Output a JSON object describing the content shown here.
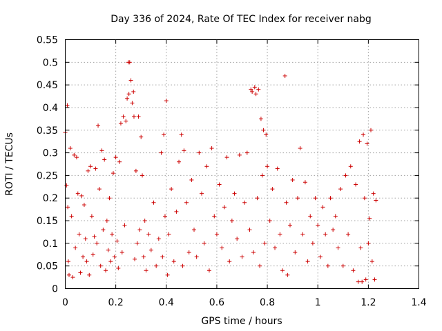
{
  "chart_data": {
    "type": "scatter",
    "title": "Day 336 of 2024, Rate Of TEC Index for receiver nabg",
    "xlabel": "GPS time / hours",
    "ylabel": "ROTI / TECUs",
    "xlim": [
      0,
      1.4
    ],
    "ylim": [
      0,
      0.55
    ],
    "xticks": [
      0,
      0.2,
      0.4,
      0.6,
      0.8,
      1,
      1.2,
      1.4
    ],
    "xtick_labels": [
      "0",
      "0.2",
      "0.4",
      "0.6",
      "0.8",
      "1",
      "1.2",
      "1.4"
    ],
    "yticks": [
      0,
      0.05,
      0.1,
      0.15,
      0.2,
      0.25,
      0.3,
      0.35,
      0.4,
      0.45,
      0.5,
      0.55
    ],
    "ytick_labels": [
      "0",
      "0.05",
      "0.1",
      "0.15",
      "0.2",
      "0.25",
      "0.3",
      "0.35",
      "0.4",
      "0.45",
      "0.5",
      "0.55"
    ],
    "grid": true,
    "marker": "+",
    "color": "#cc0000",
    "series": [
      {
        "name": "ROTI",
        "points": [
          [
            0.0,
            0.345
          ],
          [
            0.005,
            0.228
          ],
          [
            0.008,
            0.405
          ],
          [
            0.01,
            0.18
          ],
          [
            0.012,
            0.06
          ],
          [
            0.015,
            0.03
          ],
          [
            0.02,
            0.31
          ],
          [
            0.025,
            0.16
          ],
          [
            0.03,
            0.025
          ],
          [
            0.035,
            0.295
          ],
          [
            0.04,
            0.09
          ],
          [
            0.045,
            0.29
          ],
          [
            0.05,
            0.21
          ],
          [
            0.055,
            0.12
          ],
          [
            0.06,
            0.035
          ],
          [
            0.065,
            0.205
          ],
          [
            0.07,
            0.07
          ],
          [
            0.075,
            0.185
          ],
          [
            0.08,
            0.11
          ],
          [
            0.085,
            0.06
          ],
          [
            0.09,
            0.26
          ],
          [
            0.095,
            0.03
          ],
          [
            0.1,
            0.27
          ],
          [
            0.105,
            0.16
          ],
          [
            0.11,
            0.075
          ],
          [
            0.115,
            0.115
          ],
          [
            0.12,
            0.265
          ],
          [
            0.125,
            0.1
          ],
          [
            0.13,
            0.36
          ],
          [
            0.135,
            0.22
          ],
          [
            0.14,
            0.05
          ],
          [
            0.145,
            0.305
          ],
          [
            0.15,
            0.13
          ],
          [
            0.155,
            0.285
          ],
          [
            0.16,
            0.04
          ],
          [
            0.165,
            0.15
          ],
          [
            0.17,
            0.085
          ],
          [
            0.175,
            0.2
          ],
          [
            0.18,
            0.06
          ],
          [
            0.185,
            0.12
          ],
          [
            0.19,
            0.255
          ],
          [
            0.195,
            0.07
          ],
          [
            0.2,
            0.29
          ],
          [
            0.205,
            0.105
          ],
          [
            0.21,
            0.045
          ],
          [
            0.215,
            0.28
          ],
          [
            0.22,
            0.365
          ],
          [
            0.225,
            0.08
          ],
          [
            0.23,
            0.38
          ],
          [
            0.235,
            0.14
          ],
          [
            0.24,
            0.37
          ],
          [
            0.245,
            0.42
          ],
          [
            0.25,
            0.5
          ],
          [
            0.252,
            0.43
          ],
          [
            0.255,
            0.5
          ],
          [
            0.26,
            0.46
          ],
          [
            0.265,
            0.41
          ],
          [
            0.27,
            0.435
          ],
          [
            0.272,
            0.38
          ],
          [
            0.275,
            0.065
          ],
          [
            0.28,
            0.26
          ],
          [
            0.285,
            0.1
          ],
          [
            0.29,
            0.38
          ],
          [
            0.295,
            0.13
          ],
          [
            0.3,
            0.335
          ],
          [
            0.305,
            0.25
          ],
          [
            0.31,
            0.07
          ],
          [
            0.315,
            0.15
          ],
          [
            0.32,
            0.04
          ],
          [
            0.33,
            0.12
          ],
          [
            0.34,
            0.085
          ],
          [
            0.35,
            0.19
          ],
          [
            0.36,
            0.05
          ],
          [
            0.37,
            0.11
          ],
          [
            0.38,
            0.3
          ],
          [
            0.385,
            0.07
          ],
          [
            0.39,
            0.34
          ],
          [
            0.395,
            0.16
          ],
          [
            0.4,
            0.415
          ],
          [
            0.405,
            0.03
          ],
          [
            0.41,
            0.12
          ],
          [
            0.42,
            0.22
          ],
          [
            0.43,
            0.06
          ],
          [
            0.44,
            0.17
          ],
          [
            0.45,
            0.28
          ],
          [
            0.46,
            0.34
          ],
          [
            0.465,
            0.05
          ],
          [
            0.47,
            0.305
          ],
          [
            0.48,
            0.19
          ],
          [
            0.49,
            0.08
          ],
          [
            0.5,
            0.24
          ],
          [
            0.51,
            0.13
          ],
          [
            0.52,
            0.07
          ],
          [
            0.53,
            0.3
          ],
          [
            0.54,
            0.21
          ],
          [
            0.55,
            0.1
          ],
          [
            0.56,
            0.27
          ],
          [
            0.57,
            0.04
          ],
          [
            0.58,
            0.31
          ],
          [
            0.59,
            0.16
          ],
          [
            0.6,
            0.12
          ],
          [
            0.61,
            0.23
          ],
          [
            0.62,
            0.09
          ],
          [
            0.63,
            0.18
          ],
          [
            0.64,
            0.29
          ],
          [
            0.65,
            0.06
          ],
          [
            0.66,
            0.15
          ],
          [
            0.67,
            0.21
          ],
          [
            0.68,
            0.11
          ],
          [
            0.69,
            0.295
          ],
          [
            0.7,
            0.07
          ],
          [
            0.71,
            0.19
          ],
          [
            0.72,
            0.3
          ],
          [
            0.73,
            0.13
          ],
          [
            0.735,
            0.44
          ],
          [
            0.74,
            0.435
          ],
          [
            0.745,
            0.08
          ],
          [
            0.75,
            0.445
          ],
          [
            0.755,
            0.43
          ],
          [
            0.76,
            0.2
          ],
          [
            0.765,
            0.44
          ],
          [
            0.77,
            0.05
          ],
          [
            0.775,
            0.375
          ],
          [
            0.78,
            0.25
          ],
          [
            0.785,
            0.35
          ],
          [
            0.79,
            0.1
          ],
          [
            0.795,
            0.34
          ],
          [
            0.8,
            0.27
          ],
          [
            0.81,
            0.15
          ],
          [
            0.82,
            0.22
          ],
          [
            0.83,
            0.09
          ],
          [
            0.84,
            0.265
          ],
          [
            0.85,
            0.12
          ],
          [
            0.86,
            0.04
          ],
          [
            0.87,
            0.47
          ],
          [
            0.875,
            0.19
          ],
          [
            0.88,
            0.03
          ],
          [
            0.89,
            0.14
          ],
          [
            0.9,
            0.24
          ],
          [
            0.91,
            0.08
          ],
          [
            0.92,
            0.2
          ],
          [
            0.93,
            0.31
          ],
          [
            0.94,
            0.12
          ],
          [
            0.95,
            0.235
          ],
          [
            0.96,
            0.06
          ],
          [
            0.97,
            0.16
          ],
          [
            0.98,
            0.1
          ],
          [
            0.99,
            0.2
          ],
          [
            1.0,
            0.14
          ],
          [
            1.01,
            0.07
          ],
          [
            1.02,
            0.18
          ],
          [
            1.03,
            0.12
          ],
          [
            1.04,
            0.05
          ],
          [
            1.05,
            0.2
          ],
          [
            1.06,
            0.13
          ],
          [
            1.07,
            0.16
          ],
          [
            1.08,
            0.09
          ],
          [
            1.09,
            0.22
          ],
          [
            1.1,
            0.05
          ],
          [
            1.11,
            0.25
          ],
          [
            1.12,
            0.12
          ],
          [
            1.13,
            0.27
          ],
          [
            1.14,
            0.04
          ],
          [
            1.15,
            0.23
          ],
          [
            1.16,
            0.015
          ],
          [
            1.165,
            0.325
          ],
          [
            1.17,
            0.09
          ],
          [
            1.175,
            0.015
          ],
          [
            1.18,
            0.34
          ],
          [
            1.185,
            0.2
          ],
          [
            1.19,
            0.02
          ],
          [
            1.195,
            0.32
          ],
          [
            1.2,
            0.1
          ],
          [
            1.205,
            0.155
          ],
          [
            1.21,
            0.35
          ],
          [
            1.215,
            0.06
          ],
          [
            1.22,
            0.21
          ],
          [
            1.225,
            0.02
          ],
          [
            1.23,
            0.195
          ]
        ]
      }
    ]
  }
}
